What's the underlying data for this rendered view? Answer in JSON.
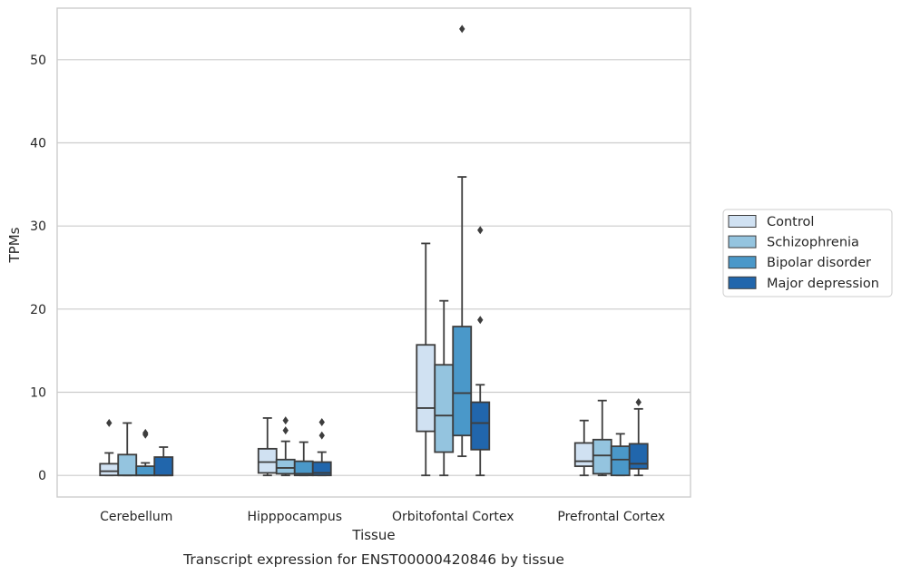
{
  "chart_data": {
    "type": "box",
    "caption": "Transcript expression for ENST00000420846 by tissue",
    "xlabel": "Tissue",
    "ylabel": "TPMs",
    "ylim": [
      -2.6,
      56.2
    ],
    "yticks": [
      0,
      10,
      20,
      30,
      40,
      50
    ],
    "grid": "horizontal",
    "legend_position": "right",
    "categories": [
      "Cerebellum",
      "Hipppocampus",
      "Orbitofontal Cortex",
      "Prefrontal Cortex"
    ],
    "series": [
      {
        "name": "Control",
        "color": "#d0e1f2",
        "boxes": [
          {
            "whislo": 0,
            "q1": 0,
            "med": 0.5,
            "q3": 1.4,
            "whishi": 2.7,
            "fliers": [
              6.3
            ]
          },
          {
            "whislo": 0,
            "q1": 0.3,
            "med": 1.6,
            "q3": 3.2,
            "whishi": 6.9,
            "fliers": []
          },
          {
            "whislo": 0,
            "q1": 5.3,
            "med": 8.1,
            "q3": 15.7,
            "whishi": 27.9,
            "fliers": []
          },
          {
            "whislo": 0,
            "q1": 1.1,
            "med": 1.7,
            "q3": 3.9,
            "whishi": 6.6,
            "fliers": []
          }
        ]
      },
      {
        "name": "Schizophrenia",
        "color": "#94c4df",
        "boxes": [
          {
            "whislo": 0,
            "q1": 0,
            "med": 0,
            "q3": 2.5,
            "whishi": 6.3,
            "fliers": []
          },
          {
            "whislo": 0,
            "q1": 0.2,
            "med": 0.9,
            "q3": 1.9,
            "whishi": 4.1,
            "fliers": [
              5.4,
              6.6
            ]
          },
          {
            "whislo": 0,
            "q1": 2.8,
            "med": 7.2,
            "q3": 13.3,
            "whishi": 21.0,
            "fliers": []
          },
          {
            "whislo": 0,
            "q1": 0.2,
            "med": 2.4,
            "q3": 4.3,
            "whishi": 9.0,
            "fliers": []
          }
        ]
      },
      {
        "name": "Bipolar disorder",
        "color": "#4a98c9",
        "boxes": [
          {
            "whislo": 0,
            "q1": 0,
            "med": 0,
            "q3": 1.1,
            "whishi": 1.5,
            "fliers": [
              4.9,
              5.1
            ]
          },
          {
            "whislo": 0,
            "q1": 0,
            "med": 0.2,
            "q3": 1.7,
            "whishi": 4.0,
            "fliers": []
          },
          {
            "whislo": 2.3,
            "q1": 4.8,
            "med": 9.9,
            "q3": 17.9,
            "whishi": 35.9,
            "fliers": [
              53.7
            ]
          },
          {
            "whislo": 0,
            "q1": 0,
            "med": 1.9,
            "q3": 3.5,
            "whishi": 5.0,
            "fliers": []
          }
        ]
      },
      {
        "name": "Major depression",
        "color": "#2166ac",
        "boxes": [
          {
            "whislo": 0,
            "q1": 0,
            "med": 0,
            "q3": 2.2,
            "whishi": 3.4,
            "fliers": []
          },
          {
            "whislo": 0,
            "q1": 0,
            "med": 0.3,
            "q3": 1.6,
            "whishi": 2.8,
            "fliers": [
              4.8,
              6.4
            ]
          },
          {
            "whislo": 0,
            "q1": 3.1,
            "med": 6.3,
            "q3": 8.8,
            "whishi": 10.9,
            "fliers": [
              18.7,
              29.5
            ]
          },
          {
            "whislo": 0,
            "q1": 0.8,
            "med": 1.4,
            "q3": 3.8,
            "whishi": 8.0,
            "fliers": [
              8.8
            ]
          }
        ]
      }
    ]
  }
}
